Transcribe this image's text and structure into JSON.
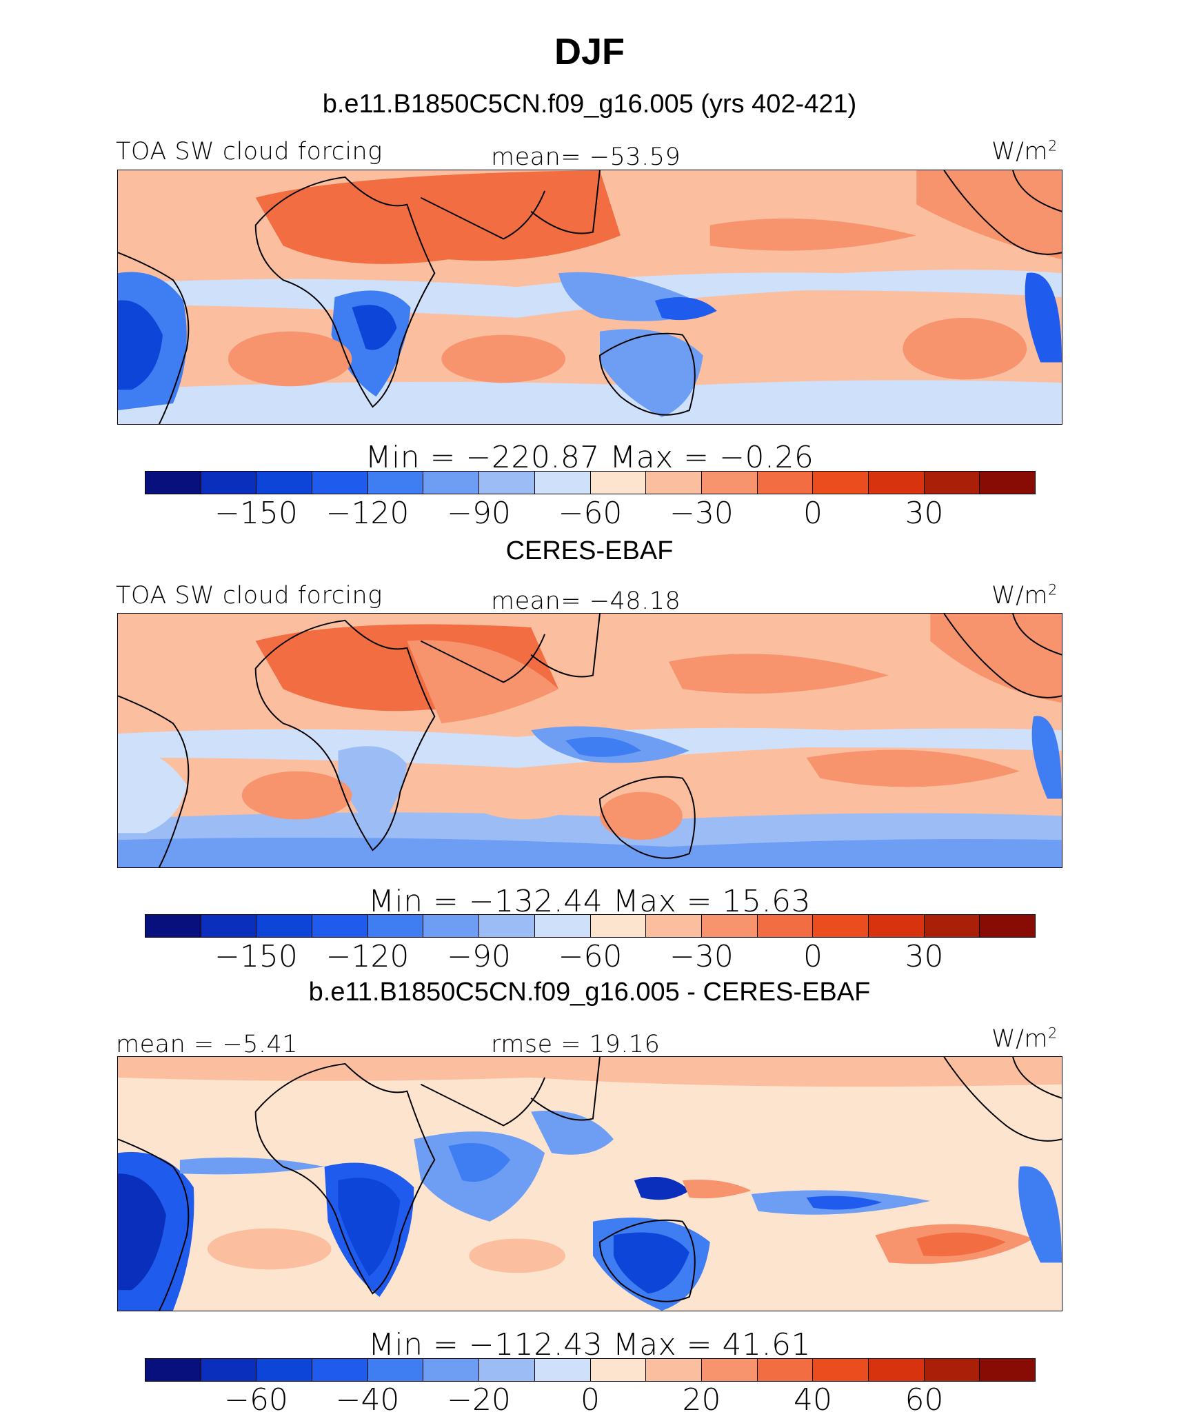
{
  "title": "DJF",
  "panels": [
    {
      "subtitle": "b.e11.B1850C5CN.f09_g16.005 (yrs 402-421)",
      "left_label": "TOA SW cloud forcing",
      "center_label": "mean=  −53.59",
      "unit": "W/m",
      "unit_sup": "2",
      "minmax": "Min  =  −220.87  Max  =   −0.26",
      "ticks": [
        "−150",
        "−120",
        "−90",
        "−60",
        "−30",
        "0",
        "30"
      ],
      "palette": [
        "#08107e",
        "#0a2fbd",
        "#0d45d9",
        "#1f5bec",
        "#3f7df2",
        "#6d9ef3",
        "#9cbcf5",
        "#cfe0fb",
        "#fde4cf",
        "#fbbfa0",
        "#f7946d",
        "#f26e42",
        "#ec4d1f",
        "#d8330f",
        "#aa1f07",
        "#880b04"
      ]
    },
    {
      "subtitle": "CERES-EBAF",
      "left_label": "TOA SW cloud forcing",
      "center_label": "mean=  −48.18",
      "unit": "W/m",
      "unit_sup": "2",
      "minmax": "Min  =  −132.44  Max  =   15.63",
      "ticks": [
        "−150",
        "−120",
        "−90",
        "−60",
        "−30",
        "0",
        "30"
      ],
      "palette": [
        "#08107e",
        "#0a2fbd",
        "#0d45d9",
        "#1f5bec",
        "#3f7df2",
        "#6d9ef3",
        "#9cbcf5",
        "#cfe0fb",
        "#fde4cf",
        "#fbbfa0",
        "#f7946d",
        "#f26e42",
        "#ec4d1f",
        "#d8330f",
        "#aa1f07",
        "#880b04"
      ]
    },
    {
      "subtitle": "b.e11.B1850C5CN.f09_g16.005 - CERES-EBAF",
      "left_label": "mean  =   −5.41",
      "center_label": "rmse  =   19.16",
      "unit": "W/m",
      "unit_sup": "2",
      "minmax": "Min  =  −112.43  Max  =   41.61",
      "ticks": [
        "−60",
        "−40",
        "−20",
        "0",
        "20",
        "40",
        "60"
      ],
      "palette": [
        "#08107e",
        "#0a2fbd",
        "#0d45d9",
        "#1f5bec",
        "#3f7df2",
        "#6d9ef3",
        "#9cbcf5",
        "#cfe0fb",
        "#fde4cf",
        "#fbbfa0",
        "#f7946d",
        "#f26e42",
        "#ec4d1f",
        "#d8330f",
        "#aa1f07",
        "#880b04"
      ]
    }
  ]
}
